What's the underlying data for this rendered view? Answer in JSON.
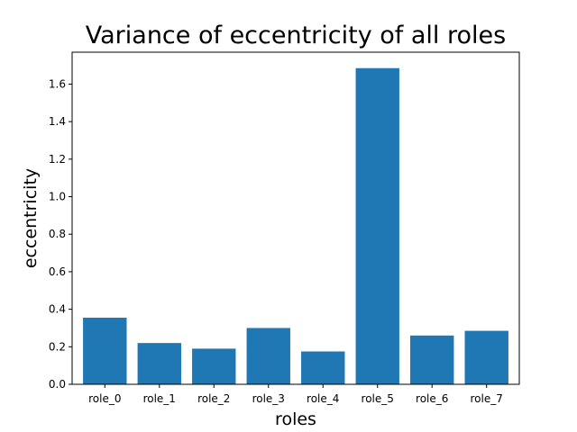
{
  "chart_data": {
    "type": "bar",
    "title": "Variance of eccentricity of all roles",
    "xlabel": "roles",
    "ylabel": "eccentricity",
    "categories": [
      "role_0",
      "role_1",
      "role_2",
      "role_3",
      "role_4",
      "role_5",
      "role_6",
      "role_7"
    ],
    "values": [
      0.355,
      0.22,
      0.19,
      0.3,
      0.175,
      1.685,
      0.26,
      0.285
    ],
    "ylim": [
      0,
      1.77
    ],
    "yticks": [
      0.0,
      0.2,
      0.4,
      0.6,
      0.8,
      1.0,
      1.2,
      1.4,
      1.6
    ],
    "ytick_labels": [
      "0.0",
      "0.2",
      "0.4",
      "0.6",
      "0.8",
      "1.0",
      "1.2",
      "1.4",
      "1.6"
    ],
    "bar_color": "#1f77b4",
    "grid": false
  }
}
